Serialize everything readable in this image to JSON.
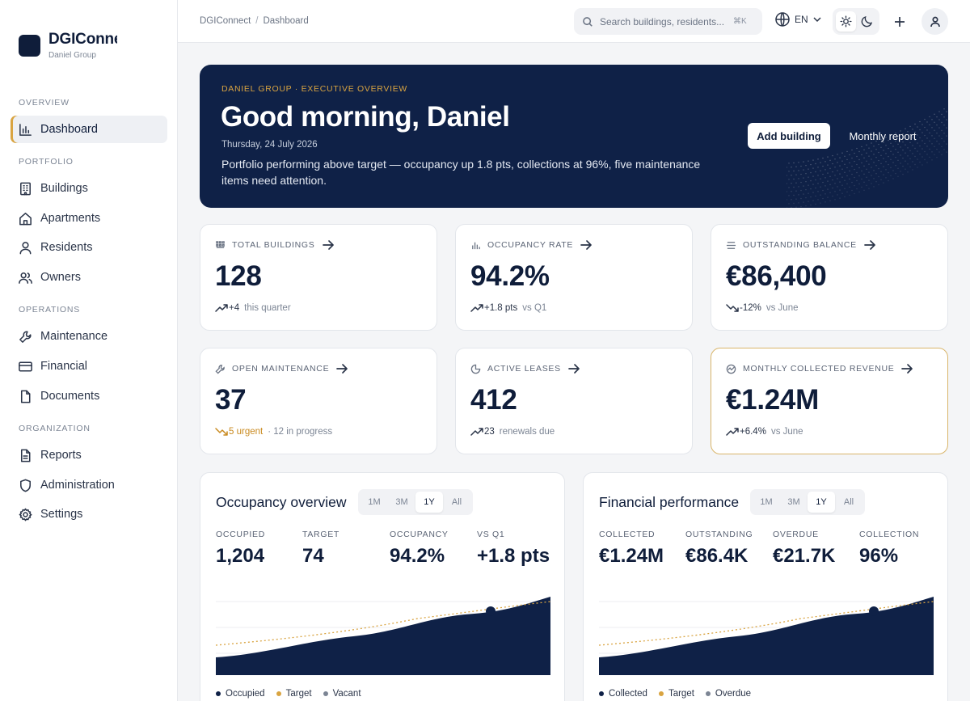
{
  "brand": {
    "name": "DGIConnect",
    "subtitle": "Daniel Group"
  },
  "sidebar": {
    "sections": [
      {
        "label": "OVERVIEW",
        "items": [
          {
            "label": "Dashboard",
            "icon": "bar-chart-icon",
            "active": true
          }
        ]
      },
      {
        "label": "PORTFOLIO",
        "items": [
          {
            "label": "Buildings",
            "icon": "building-icon"
          },
          {
            "label": "Apartments",
            "icon": "home-icon"
          },
          {
            "label": "Residents",
            "icon": "user-icon"
          },
          {
            "label": "Owners",
            "icon": "users-icon"
          }
        ]
      },
      {
        "label": "OPERATIONS",
        "items": [
          {
            "label": "Maintenance",
            "icon": "wrench-icon"
          },
          {
            "label": "Financial",
            "icon": "credit-card-icon"
          },
          {
            "label": "Documents",
            "icon": "file-icon"
          }
        ]
      },
      {
        "label": "ORGANIZATION",
        "items": [
          {
            "label": "Reports",
            "icon": "file-text-icon"
          },
          {
            "label": "Administration",
            "icon": "shield-icon"
          },
          {
            "label": "Settings",
            "icon": "gear-icon"
          }
        ]
      }
    ]
  },
  "topbar": {
    "breadcrumb": [
      "DGIConnect",
      "Dashboard"
    ],
    "search": {
      "placeholder": "Search buildings, residents...",
      "shortcut": "⌘K"
    },
    "language": "EN",
    "theme": "light"
  },
  "hero": {
    "eyebrow": "DANIEL GROUP · EXECUTIVE OVERVIEW",
    "title": "Good morning, Daniel",
    "date": "Thursday, 24 July 2026",
    "description": "Portfolio performing above target — occupancy up 1.8 pts, collections at 96%, five maintenance items need attention.",
    "primary_action": "Add building",
    "secondary_action": "Monthly report"
  },
  "kpis": [
    {
      "label": "TOTAL BUILDINGS",
      "value": "128",
      "delta": "+4",
      "note": "this quarter",
      "trend": "up"
    },
    {
      "label": "OCCUPANCY RATE",
      "value": "94.2%",
      "delta": "+1.8 pts",
      "note": "vs Q1",
      "trend": "up"
    },
    {
      "label": "OUTSTANDING BALANCE",
      "value": "€86,400",
      "delta": "-12%",
      "note": "vs June",
      "trend": "down"
    },
    {
      "label": "OPEN MAINTENANCE",
      "value": "37",
      "delta": "5 urgent",
      "note": "· 12 in progress",
      "trend": "warn"
    },
    {
      "label": "ACTIVE LEASES",
      "value": "412",
      "delta": "23",
      "note": "renewals due",
      "trend": "up"
    },
    {
      "label": "MONTHLY COLLECTED REVENUE",
      "value": "€1.24M",
      "delta": "+6.4%",
      "note": "vs June",
      "trend": "up"
    }
  ],
  "occupancy_panel": {
    "title": "Occupancy overview",
    "ranges": [
      "1M",
      "3M",
      "1Y",
      "All"
    ],
    "selected_range": "1Y",
    "stats": [
      {
        "label": "OCCUPIED",
        "value": "1,204"
      },
      {
        "label": "TARGET",
        "value": "74"
      },
      {
        "label": "OCCUPANCY",
        "value": "94.2%"
      },
      {
        "label": "VS Q1",
        "value": "+1.8 pts"
      }
    ],
    "legend": [
      {
        "label": "Occupied",
        "color": "#0f2147"
      },
      {
        "label": "Target",
        "color": "#d9a441"
      },
      {
        "label": "Vacant",
        "color": "#7c8594"
      }
    ]
  },
  "financial_panel": {
    "title": "Financial performance",
    "ranges": [
      "1M",
      "3M",
      "1Y",
      "All"
    ],
    "selected_range": "1Y",
    "stats": [
      {
        "label": "COLLECTED",
        "value": "€1.24M"
      },
      {
        "label": "OUTSTANDING",
        "value": "€86.4K"
      },
      {
        "label": "OVERDUE",
        "value": "€21.7K"
      },
      {
        "label": "COLLECTION",
        "value": "96%"
      }
    ],
    "legend": [
      {
        "label": "Collected",
        "color": "#0f2147"
      },
      {
        "label": "Target",
        "color": "#d9a441"
      },
      {
        "label": "Overdue",
        "color": "#7c8594"
      }
    ]
  },
  "colors": {
    "navy": "#0f2147",
    "gold": "#d9a441",
    "muted": "#7c8594"
  }
}
